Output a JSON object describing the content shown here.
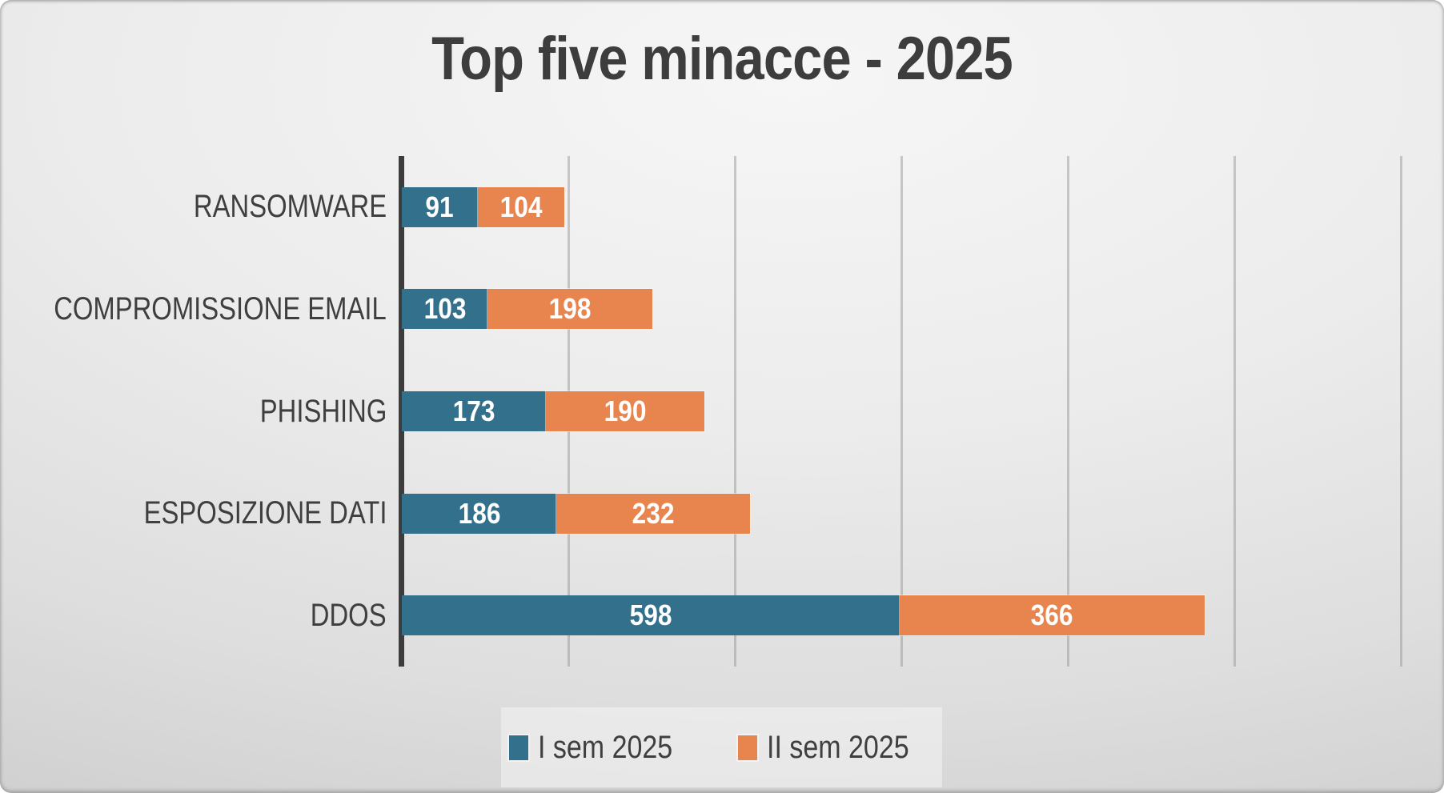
{
  "title": "Top five minacce - 2025",
  "chart_data": {
    "type": "bar",
    "orientation": "horizontal",
    "stacked": true,
    "title": "Top five minacce - 2025",
    "categories": [
      "RANSOMWARE",
      "COMPROMISSIONE EMAIL",
      "PHISHING",
      "ESPOSIZIONE DATI",
      "DDOS"
    ],
    "series": [
      {
        "name": "I sem 2025",
        "color": "#33708C",
        "values": [
          91,
          103,
          173,
          186,
          598
        ]
      },
      {
        "name": "II sem 2025",
        "color": "#E8854E",
        "values": [
          104,
          198,
          190,
          232,
          366
        ]
      }
    ],
    "value_labels_visible": true,
    "value_label_color": "#FFFFFF",
    "xlabel": "",
    "ylabel": "",
    "x_axis": {
      "min": 0,
      "max": 1200,
      "gridline_step": 200,
      "gridlines_visible": true,
      "tick_labels_visible": false
    },
    "legend_position": "bottom",
    "legend_entries": [
      "I sem 2025",
      "II sem 2025"
    ]
  },
  "colors": {
    "series_1": "#33708C",
    "series_2": "#E8854E",
    "axis_line": "#3C3C3C",
    "text": "#3F3F3F",
    "value_text": "#FFFFFF"
  }
}
